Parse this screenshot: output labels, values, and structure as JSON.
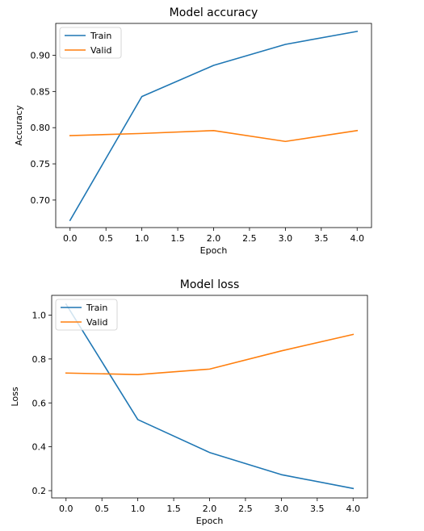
{
  "chart_data": [
    {
      "type": "line",
      "title": "Model accuracy",
      "xlabel": "Epoch",
      "ylabel": "Accuracy",
      "xlim": [
        -0.2,
        4.2
      ],
      "ylim": [
        0.662,
        0.944
      ],
      "xticks": [
        0.0,
        0.5,
        1.0,
        1.5,
        2.0,
        2.5,
        3.0,
        3.5,
        4.0
      ],
      "xtick_labels": [
        "0.0",
        "0.5",
        "1.0",
        "1.5",
        "2.0",
        "2.5",
        "3.0",
        "3.5",
        "4.0"
      ],
      "yticks": [
        0.7,
        0.75,
        0.8,
        0.85,
        0.9
      ],
      "ytick_labels": [
        "0.70",
        "0.75",
        "0.80",
        "0.85",
        "0.90"
      ],
      "grid": false,
      "legend_position": "upper left",
      "x": [
        0,
        1,
        2,
        3,
        4
      ],
      "series": [
        {
          "name": "Train",
          "color": "#1f77b4",
          "values": [
            0.672,
            0.843,
            0.886,
            0.915,
            0.933
          ]
        },
        {
          "name": "Valid",
          "color": "#ff7f0e",
          "values": [
            0.789,
            0.792,
            0.796,
            0.781,
            0.796
          ]
        }
      ]
    },
    {
      "type": "line",
      "title": "Model loss",
      "xlabel": "Epoch",
      "ylabel": "Loss",
      "xlim": [
        -0.2,
        4.2
      ],
      "ylim": [
        0.167,
        1.09
      ],
      "xticks": [
        0.0,
        0.5,
        1.0,
        1.5,
        2.0,
        2.5,
        3.0,
        3.5,
        4.0
      ],
      "xtick_labels": [
        "0.0",
        "0.5",
        "1.0",
        "1.5",
        "2.0",
        "2.5",
        "3.0",
        "3.5",
        "4.0"
      ],
      "yticks": [
        0.2,
        0.4,
        0.6,
        0.8,
        1.0
      ],
      "ytick_labels": [
        "0.2",
        "0.4",
        "0.6",
        "0.8",
        "1.0"
      ],
      "grid": false,
      "legend_position": "upper left",
      "x": [
        0,
        1,
        2,
        3,
        4
      ],
      "series": [
        {
          "name": "Train",
          "color": "#1f77b4",
          "values": [
            1.05,
            0.524,
            0.374,
            0.273,
            0.21
          ]
        },
        {
          "name": "Valid",
          "color": "#ff7f0e",
          "values": [
            0.736,
            0.729,
            0.754,
            0.837,
            0.912
          ]
        }
      ]
    }
  ]
}
